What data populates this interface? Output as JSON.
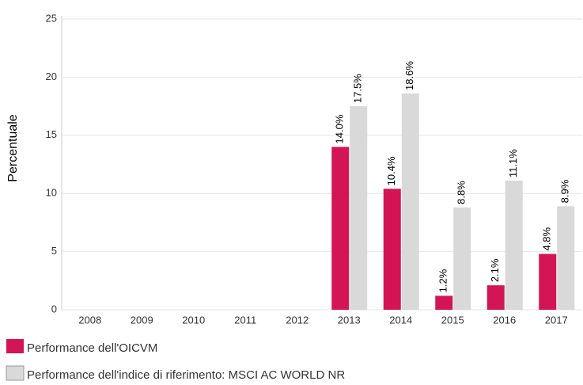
{
  "chart_data": {
    "type": "bar",
    "y_label": "Percentuale",
    "categories": [
      "2008",
      "2009",
      "2010",
      "2011",
      "2012",
      "2013",
      "2014",
      "2015",
      "2016",
      "2017"
    ],
    "series": [
      {
        "name": "Performance dell'OICVM",
        "color": "#d31455",
        "values": [
          null,
          null,
          null,
          null,
          null,
          14.0,
          10.4,
          1.2,
          2.1,
          4.8
        ],
        "value_labels": [
          null,
          null,
          null,
          null,
          null,
          "14.0%",
          "10.4%",
          "1.2%",
          "2.1%",
          "4.8%"
        ]
      },
      {
        "name": "Performance dell'indice di riferimento: MSCI AC WORLD NR",
        "color": "#d9d9d9",
        "values": [
          null,
          null,
          null,
          null,
          null,
          17.5,
          18.6,
          8.8,
          11.1,
          8.9
        ],
        "value_labels": [
          null,
          null,
          null,
          null,
          null,
          "17.5%",
          "18.6%",
          "8.8%",
          "11.1%",
          "8.9%"
        ]
      }
    ],
    "ylim": [
      0,
      25
    ],
    "yticks": [
      0,
      5,
      10,
      15,
      20,
      25
    ],
    "grid": true
  }
}
